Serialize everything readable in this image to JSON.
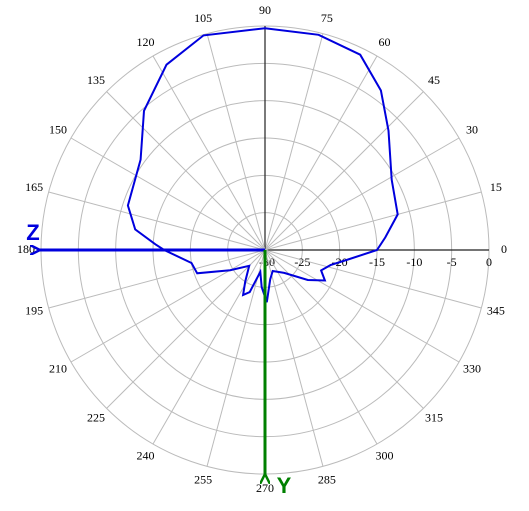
{
  "chart_data": {
    "type": "polar",
    "angles": [
      0,
      6,
      15,
      29,
      44,
      54,
      64,
      76,
      90,
      106,
      118,
      131,
      144,
      162,
      171,
      177,
      180,
      190,
      199,
      210,
      225,
      238,
      244,
      250,
      258,
      265,
      272,
      280,
      290,
      310,
      325,
      333,
      340,
      347,
      353
    ],
    "values": [
      -15,
      -13.8,
      -11.6,
      -10.6,
      -7,
      -3.6,
      -0.9,
      -0.3,
      -0.3,
      -0.1,
      -1.9,
      -5.3,
      -9.4,
      -10.7,
      -12.4,
      -15.3,
      -16.5,
      -20,
      -20.4,
      -24.6,
      -27,
      -25,
      -23.3,
      -24,
      -27,
      -25,
      -23,
      -26,
      -27,
      -26,
      -23,
      -21,
      -22,
      -21,
      -19
    ],
    "color": "#0000dd",
    "rlim": [
      -30,
      0
    ],
    "rticks": [
      -30,
      -25,
      -20,
      -15,
      -10,
      -5,
      0
    ],
    "thetaticks": [
      0,
      15,
      30,
      45,
      60,
      75,
      90,
      105,
      120,
      135,
      150,
      165,
      180,
      195,
      210,
      225,
      240,
      255,
      270,
      285,
      300,
      315,
      330,
      345
    ],
    "annotations": [
      "Z",
      "Y"
    ]
  }
}
